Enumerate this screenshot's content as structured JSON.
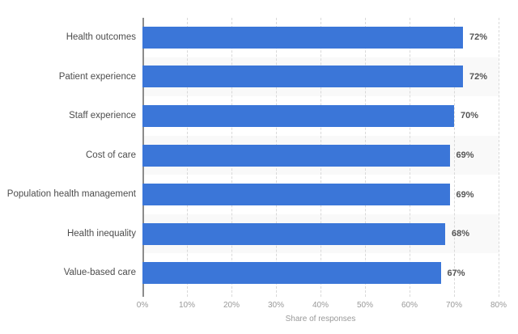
{
  "chart_data": {
    "type": "bar",
    "orientation": "horizontal",
    "title": "",
    "categories": [
      "Health outcomes",
      "Patient experience",
      "Staff experience",
      "Cost of care",
      "Population health management",
      "Health inequality",
      "Value-based care"
    ],
    "values": [
      72,
      72,
      70,
      69,
      69,
      68,
      67
    ],
    "value_labels": [
      "72%",
      "72%",
      "70%",
      "69%",
      "69%",
      "68%",
      "67%"
    ],
    "xlabel": "Share of responses",
    "ylabel": "",
    "xlim": [
      0,
      80
    ],
    "x_ticks": [
      0,
      10,
      20,
      30,
      40,
      50,
      60,
      70,
      80
    ],
    "x_tick_labels": [
      "0%",
      "10%",
      "20%",
      "30%",
      "40%",
      "50%",
      "60%",
      "70%",
      "80%"
    ],
    "grid": "vertical-dashed",
    "legend": "none",
    "alternating_row_bands": [
      1,
      3,
      5
    ],
    "colors": {
      "bar": "#3b76d8",
      "band": "#f9f9f9",
      "gridline": "#d9d9d9",
      "axis_line": "#8c8c8c",
      "category_label": "#4d4d4d",
      "value_label": "#555555",
      "tick_label": "#999999",
      "axis_title": "#999999",
      "background": "#ffffff"
    }
  }
}
